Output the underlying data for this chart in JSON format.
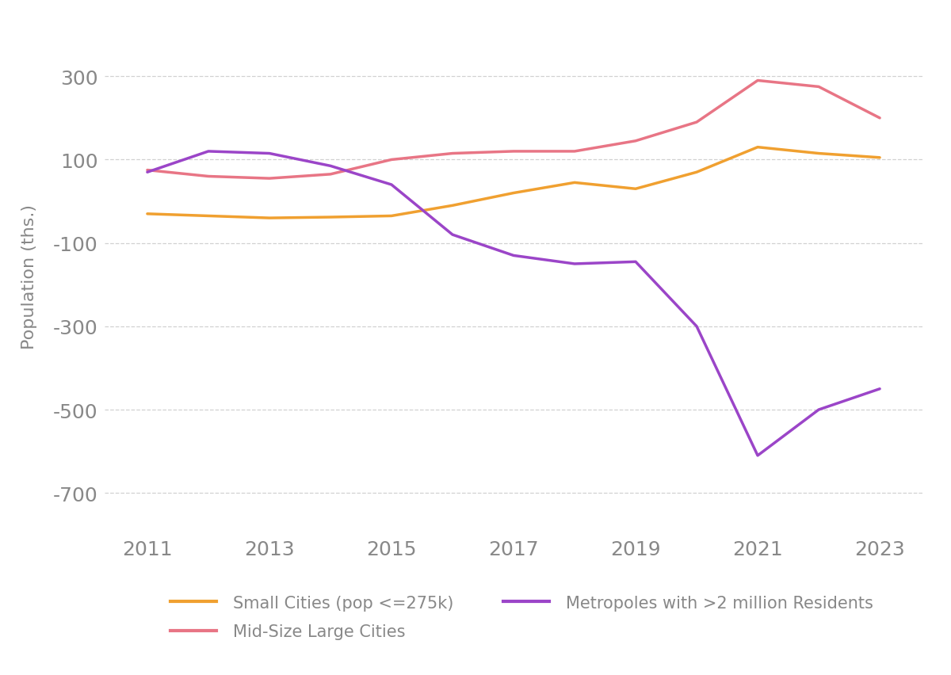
{
  "ylabel": "Population (ths.)",
  "years": [
    2011,
    2012,
    2013,
    2014,
    2015,
    2016,
    2017,
    2018,
    2019,
    2020,
    2021,
    2022,
    2023
  ],
  "small_cities": {
    "label": "Small Cities (pop <=275k)",
    "color": "#F0A030",
    "values": [
      -30,
      -35,
      -40,
      -38,
      -35,
      -10,
      20,
      45,
      30,
      70,
      130,
      115,
      105
    ]
  },
  "mid_size": {
    "label": "Mid-Size Large Cities",
    "color": "#E87585",
    "values": [
      75,
      60,
      55,
      65,
      100,
      115,
      120,
      120,
      145,
      190,
      290,
      275,
      200
    ]
  },
  "metropoles": {
    "label": "Metropoles with >2 million Residents",
    "color": "#9B45C8",
    "values": [
      70,
      120,
      115,
      85,
      40,
      -80,
      -130,
      -150,
      -145,
      -300,
      -610,
      -500,
      -450
    ]
  },
  "ylim": [
    -780,
    420
  ],
  "yticks": [
    -700,
    -500,
    -300,
    -100,
    100,
    300
  ],
  "xticks": [
    2011,
    2013,
    2015,
    2017,
    2019,
    2021,
    2023
  ],
  "background_color": "#ffffff",
  "grid_color": "#cccccc",
  "line_width": 2.5,
  "tick_fontsize": 18,
  "ylabel_fontsize": 16,
  "legend_fontsize": 15
}
